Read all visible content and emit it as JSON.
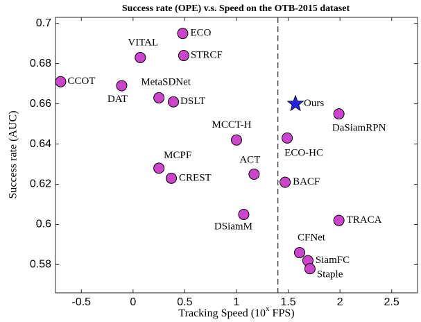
{
  "chart_data": {
    "type": "scatter",
    "title": "Success rate (OPE) v.s. Speed on the OTB-2015 dataset",
    "xlabel_parts": [
      "Tracking Speed (10",
      "x",
      " FPS)"
    ],
    "ylabel": "Success rate (AUC)",
    "xlim": [
      -0.75,
      2.75
    ],
    "ylim": [
      0.566,
      0.703
    ],
    "xticks": [
      -0.5,
      0,
      0.5,
      1,
      1.5,
      2,
      2.5
    ],
    "yticks": [
      0.58,
      0.6,
      0.62,
      0.64,
      0.66,
      0.68,
      0.7
    ],
    "vline": 1.4,
    "color": "#cc44cc",
    "highlight_color": "#2424e0",
    "points": [
      {
        "name": "CCOT",
        "x": -0.7,
        "y": 0.671
      },
      {
        "name": "VITAL",
        "x": 0.07,
        "y": 0.683
      },
      {
        "name": "ECO",
        "x": 0.48,
        "y": 0.695
      },
      {
        "name": "STRCF",
        "x": 0.49,
        "y": 0.684
      },
      {
        "name": "DAT",
        "x": -0.11,
        "y": 0.669
      },
      {
        "name": "MetaSDNet",
        "x": 0.25,
        "y": 0.663
      },
      {
        "name": "DSLT",
        "x": 0.39,
        "y": 0.661
      },
      {
        "name": "MCCT-H",
        "x": 1.0,
        "y": 0.642
      },
      {
        "name": "ECO-HC",
        "x": 1.49,
        "y": 0.643
      },
      {
        "name": "Ours",
        "x": 1.57,
        "y": 0.66,
        "highlight": true
      },
      {
        "name": "DaSiamRPN",
        "x": 1.99,
        "y": 0.655
      },
      {
        "name": "MCPF",
        "x": 0.25,
        "y": 0.628
      },
      {
        "name": "CREST",
        "x": 0.37,
        "y": 0.623
      },
      {
        "name": "ACT",
        "x": 1.17,
        "y": 0.625
      },
      {
        "name": "BACF",
        "x": 1.47,
        "y": 0.621
      },
      {
        "name": "DSiamM",
        "x": 1.07,
        "y": 0.605
      },
      {
        "name": "TRACA",
        "x": 1.99,
        "y": 0.602
      },
      {
        "name": "CFNet",
        "x": 1.61,
        "y": 0.586
      },
      {
        "name": "SiamFC",
        "x": 1.69,
        "y": 0.582
      },
      {
        "name": "Staple",
        "x": 1.71,
        "y": 0.578
      }
    ]
  }
}
